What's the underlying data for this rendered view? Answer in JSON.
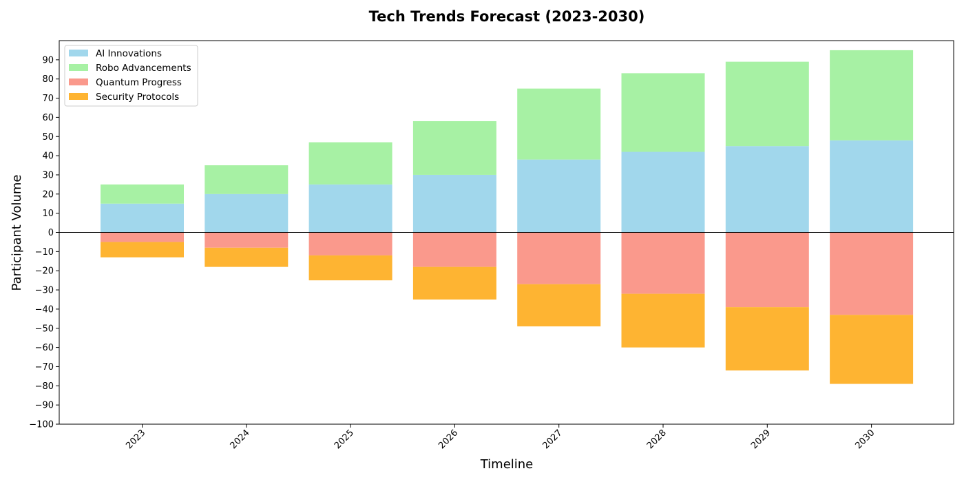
{
  "chart_data": {
    "type": "bar",
    "stacked": "diverging",
    "title": "Tech Trends Forecast (2023-2030)",
    "xlabel": "Timeline",
    "ylabel": "Participant Volume",
    "categories": [
      "2023",
      "2024",
      "2025",
      "2026",
      "2027",
      "2028",
      "2029",
      "2030"
    ],
    "ylim": [
      -100,
      100
    ],
    "yticks": [
      -100,
      -90,
      -80,
      -70,
      -60,
      -50,
      -40,
      -30,
      -20,
      -10,
      0,
      10,
      20,
      30,
      40,
      50,
      60,
      70,
      80,
      90
    ],
    "ytick_labels": [
      "−100",
      "−90",
      "−80",
      "−70",
      "−60",
      "−50",
      "−40",
      "−30",
      "−20",
      "−10",
      "0",
      "10",
      "20",
      "30",
      "40",
      "50",
      "60",
      "70",
      "80",
      "90"
    ],
    "grid": false,
    "legend_position": "top-left",
    "zero_line": true,
    "series": [
      {
        "name": "AI Innovations",
        "color": "#a1d7ec",
        "direction": "positive",
        "values": [
          15,
          20,
          25,
          30,
          38,
          42,
          45,
          48
        ]
      },
      {
        "name": "Robo Advancements",
        "color": "#a7f1a4",
        "direction": "positive",
        "values": [
          10,
          15,
          22,
          28,
          37,
          41,
          44,
          47
        ]
      },
      {
        "name": "Quantum Progress",
        "color": "#fa998c",
        "direction": "negative",
        "values": [
          -5,
          -8,
          -12,
          -18,
          -27,
          -32,
          -39,
          -43
        ]
      },
      {
        "name": "Security Protocols",
        "color": "#feb432",
        "direction": "negative",
        "values": [
          -8,
          -10,
          -13,
          -17,
          -22,
          -28,
          -33,
          -36
        ]
      }
    ]
  }
}
